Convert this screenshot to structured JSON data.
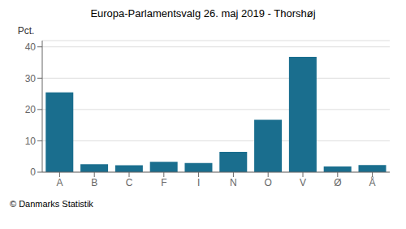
{
  "chart_data": {
    "type": "bar",
    "title": "Europa-Parlamentsvalg 26. maj 2019 - Thorshøj",
    "ylabel": "Pct.",
    "categories": [
      "A",
      "B",
      "C",
      "F",
      "I",
      "N",
      "O",
      "V",
      "Ø",
      "Å"
    ],
    "values": [
      25.5,
      2.5,
      2.2,
      3.3,
      2.9,
      6.5,
      16.7,
      36.8,
      1.8,
      2.3
    ],
    "color": "#1a6e8e",
    "ylim": [
      0,
      42
    ],
    "yticks": [
      0,
      10,
      20,
      30,
      40
    ],
    "grid": true,
    "annotations": [
      "© Danmarks Statistik"
    ]
  }
}
